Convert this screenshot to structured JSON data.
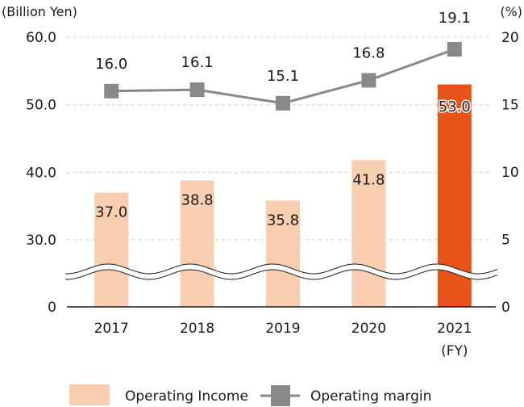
{
  "chart_data": {
    "type": "bar+line",
    "categories": [
      "2017",
      "2018",
      "2019",
      "2020",
      "2021"
    ],
    "category_suffix": {
      "2021": "(FY)"
    },
    "series": [
      {
        "name": "Operating Income",
        "type": "bar",
        "axis": "left",
        "values": [
          37.0,
          38.8,
          35.8,
          41.8,
          53.0
        ],
        "labels": [
          "37.0",
          "38.8",
          "35.8",
          "41.8",
          "53.0"
        ],
        "color": "#f8cdb0",
        "highlight_color": "#e8541a",
        "highlight_index": 4
      },
      {
        "name": "Operating margin",
        "type": "line",
        "axis": "right",
        "values": [
          16.0,
          16.1,
          15.1,
          16.8,
          19.1
        ],
        "labels": [
          "16.0",
          "16.1",
          "15.1",
          "16.8",
          "19.1"
        ],
        "color": "#888888",
        "highlight_label_color": "#e8541a"
      }
    ],
    "left_axis": {
      "unit": "(Billion Yen)",
      "ticks": [
        "0",
        "30.0",
        "40.0",
        "50.0",
        "60.0"
      ],
      "tick_values": [
        0,
        30,
        40,
        50,
        60
      ],
      "range": [
        0,
        60
      ],
      "axis_break": [
        0,
        30
      ]
    },
    "right_axis": {
      "unit": "(%)",
      "ticks": [
        "0",
        "5",
        "10",
        "15",
        "20"
      ],
      "tick_values": [
        0,
        5,
        10,
        15,
        20
      ],
      "range": [
        0,
        20
      ]
    },
    "grid": "dashed-horizontal",
    "legend": {
      "position": "bottom",
      "items": [
        "Operating Income",
        "Operating margin"
      ]
    }
  }
}
